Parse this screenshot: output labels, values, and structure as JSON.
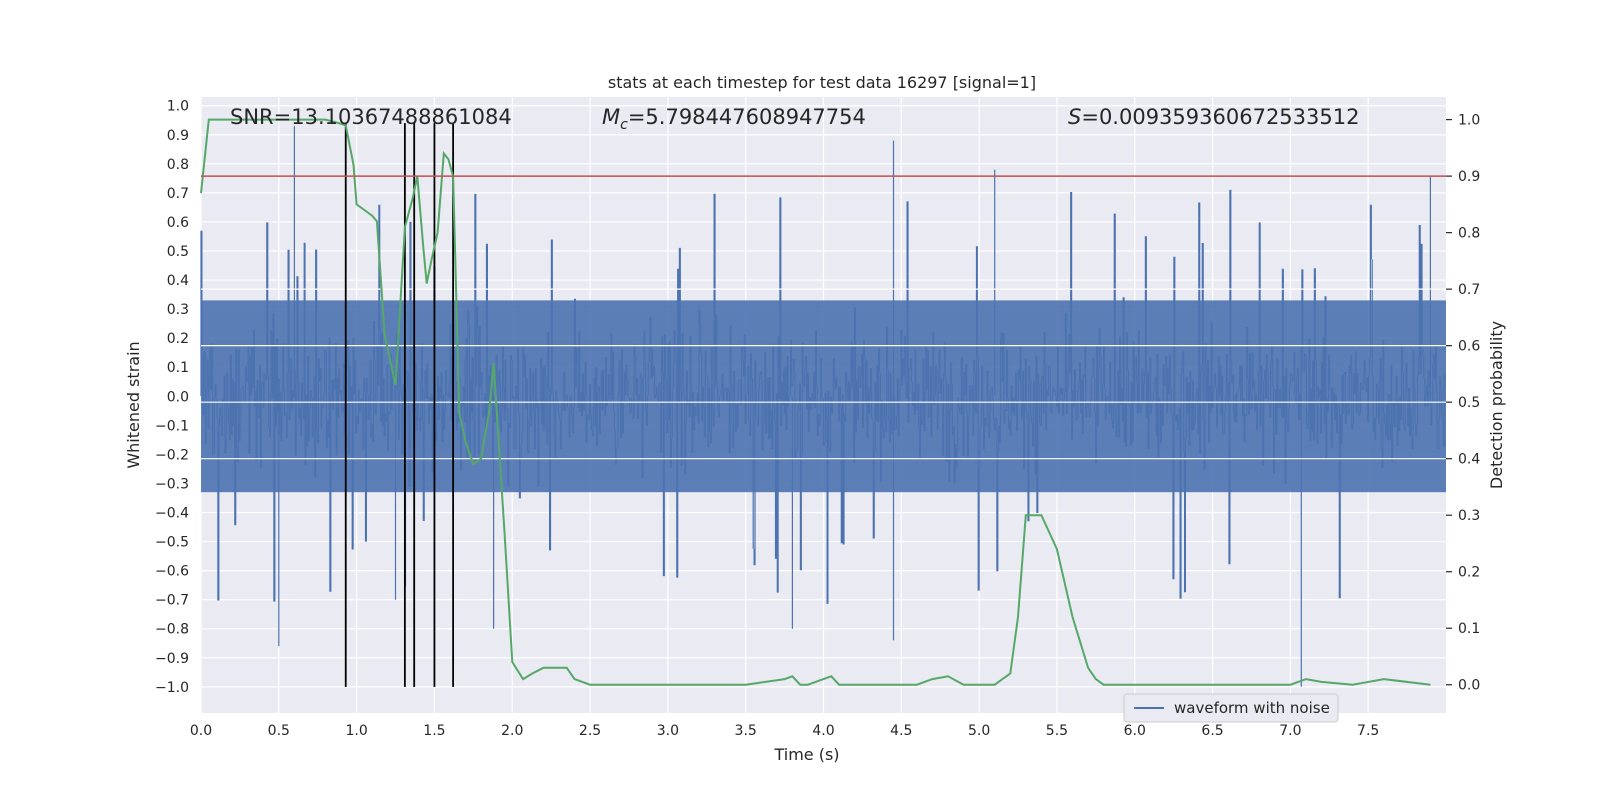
{
  "chart_data": {
    "type": "line",
    "title": "stats at each timestep for test data 16297 [signal=1]",
    "xlabel": "Time (s)",
    "ylabel_left": "Whitened strain",
    "ylabel_right": "Detection probability",
    "xlim": [
      0.0,
      8.0
    ],
    "ylim_left": [
      -1.09,
      1.03
    ],
    "ylim_right": [
      -0.05,
      1.04
    ],
    "x_ticks": [
      "0.0",
      "0.5",
      "1.0",
      "1.5",
      "2.0",
      "2.5",
      "3.0",
      "3.5",
      "4.0",
      "4.5",
      "5.0",
      "5.5",
      "6.0",
      "6.5",
      "7.0",
      "7.5"
    ],
    "y_left_ticks": [
      "1.0",
      "0.9",
      "0.8",
      "0.7",
      "0.6",
      "0.5",
      "0.4",
      "0.3",
      "0.2",
      "0.1",
      "0.0",
      "-0.1",
      "-0.2",
      "-0.3",
      "-0.4",
      "-0.5",
      "-0.6",
      "-0.7",
      "-0.8",
      "-0.9",
      "-1.0"
    ],
    "y_right_ticks": [
      "1.0",
      "0.9",
      "0.8",
      "0.7",
      "0.6",
      "0.5",
      "0.4",
      "0.3",
      "0.2",
      "0.1",
      "0.0"
    ],
    "annotations": {
      "snr": "SNR=13.10367488861084",
      "mc_symbol": "M",
      "mc_sub": "c",
      "mc_value": "=5.798447608947754",
      "s_symbol": "S",
      "s_value": "=0.009359360672533512"
    },
    "threshold": 0.9,
    "event_lines_x": [
      0.93,
      1.31,
      1.37,
      1.5,
      1.62
    ],
    "grid": true,
    "legend_position": "bottom-right",
    "series": [
      {
        "name": "waveform with noise",
        "axis": "left",
        "style": "dense noise band approximately ±0.35 with spikes to about ±0.9",
        "notable_spikes": [
          {
            "x": 0.6,
            "y": 0.93
          },
          {
            "x": 0.5,
            "y": -0.86
          },
          {
            "x": 1.25,
            "y": -0.7
          },
          {
            "x": 1.88,
            "y": -0.8
          },
          {
            "x": 3.8,
            "y": -0.8
          },
          {
            "x": 4.45,
            "y": 0.88
          },
          {
            "x": 4.45,
            "y": -0.84
          },
          {
            "x": 5.1,
            "y": 0.78
          },
          {
            "x": 7.07,
            "y": -1.0
          },
          {
            "x": 7.9,
            "y": 0.76
          }
        ]
      },
      {
        "axis": "right",
        "x": [
          0.0,
          0.05,
          0.1,
          0.2,
          0.3,
          0.4,
          0.5,
          0.6,
          0.7,
          0.8,
          0.87,
          0.93,
          0.98,
          1.0,
          1.05,
          1.1,
          1.13,
          1.18,
          1.25,
          1.31,
          1.36,
          1.39,
          1.43,
          1.45,
          1.48,
          1.52,
          1.56,
          1.59,
          1.62,
          1.66,
          1.7,
          1.75,
          1.8,
          1.85,
          1.88,
          1.95,
          2.0,
          2.07,
          2.13,
          2.2,
          2.3,
          2.35,
          2.4,
          2.5,
          3.0,
          3.5,
          3.75,
          3.8,
          3.85,
          3.9,
          4.0,
          4.05,
          4.1,
          4.5,
          4.6,
          4.7,
          4.8,
          4.9,
          5.0,
          5.1,
          5.15,
          5.2,
          5.25,
          5.3,
          5.35,
          5.4,
          5.5,
          5.6,
          5.7,
          5.75,
          5.8,
          6.0,
          6.5,
          6.8,
          7.0,
          7.1,
          7.2,
          7.4,
          7.6,
          7.9
        ],
        "y": [
          0.87,
          1.0,
          1.0,
          1.0,
          1.0,
          1.0,
          1.0,
          1.0,
          1.0,
          1.0,
          0.995,
          0.99,
          0.92,
          0.85,
          0.84,
          0.83,
          0.82,
          0.62,
          0.53,
          0.81,
          0.86,
          0.9,
          0.77,
          0.71,
          0.75,
          0.8,
          0.94,
          0.93,
          0.9,
          0.48,
          0.43,
          0.39,
          0.4,
          0.48,
          0.57,
          0.27,
          0.04,
          0.01,
          0.02,
          0.03,
          0.03,
          0.03,
          0.01,
          0.0,
          0.0,
          0.0,
          0.01,
          0.015,
          0.0,
          0.0,
          0.01,
          0.015,
          0.0,
          0.0,
          0.0,
          0.01,
          0.015,
          0.0,
          0.0,
          0.0,
          0.01,
          0.02,
          0.12,
          0.3,
          0.3,
          0.3,
          0.24,
          0.12,
          0.03,
          0.01,
          0.0,
          0.0,
          0.0,
          0.0,
          0.0,
          0.01,
          0.005,
          0.0,
          0.01,
          0.0
        ]
      },
      {
        "axis": "right",
        "x": [
          0.0,
          8.0
        ],
        "y": [
          0.9,
          0.9
        ]
      }
    ]
  },
  "colors": {
    "plot_bg": "#EAEAF2",
    "grid": "#FFFFFF",
    "waveform": "#4C72B0",
    "probability": "#55A868",
    "threshold": "#C44E52",
    "event_lines": "#000000"
  }
}
